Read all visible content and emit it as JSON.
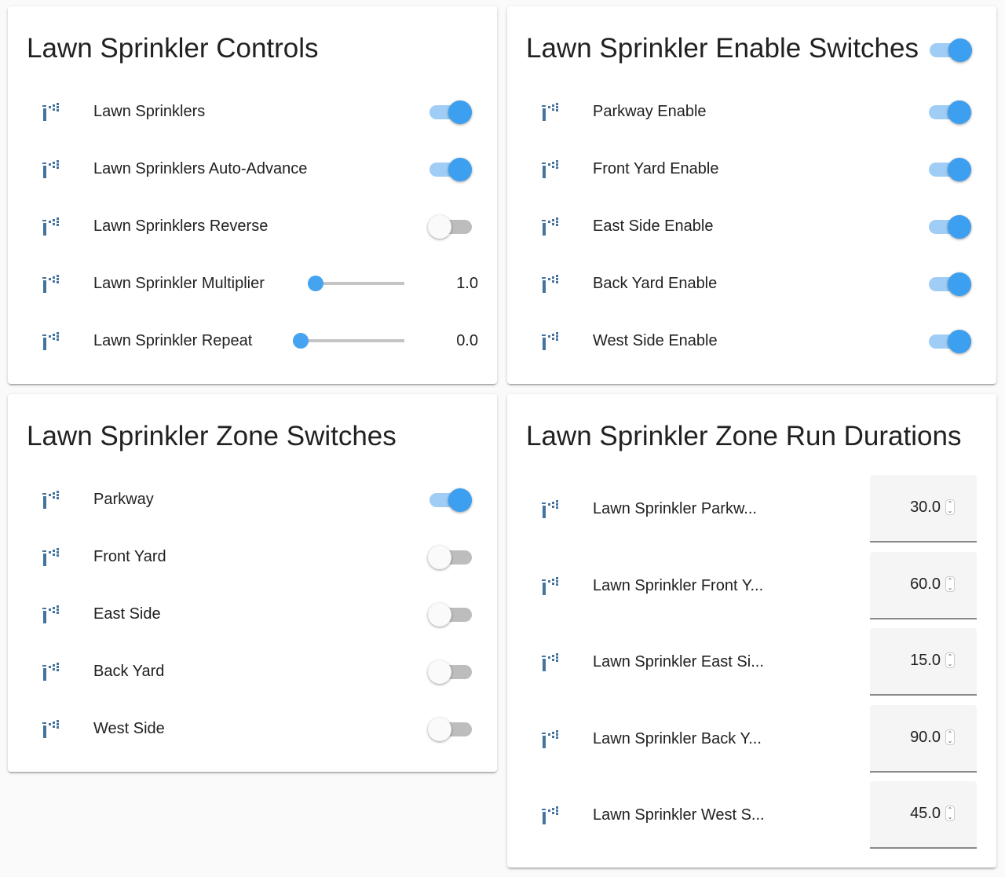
{
  "accent": "#3d9fef",
  "controls": {
    "title": "Lawn Sprinkler Controls",
    "items": [
      {
        "label": "Lawn Sprinklers",
        "type": "toggle",
        "on": true
      },
      {
        "label": "Lawn Sprinklers Auto-Advance",
        "type": "toggle",
        "on": true
      },
      {
        "label": "Lawn Sprinklers Reverse",
        "type": "toggle",
        "on": false
      },
      {
        "label": "Lawn Sprinkler Multiplier",
        "type": "slider",
        "value": "1.0"
      },
      {
        "label": "Lawn Sprinkler Repeat",
        "type": "slider",
        "value": "0.0"
      }
    ]
  },
  "enable": {
    "title": "Lawn Sprinkler Enable Switches",
    "header_toggle_on": true,
    "items": [
      {
        "label": "Parkway Enable",
        "on": true
      },
      {
        "label": "Front Yard Enable",
        "on": true
      },
      {
        "label": "East Side Enable",
        "on": true
      },
      {
        "label": "Back Yard Enable",
        "on": true
      },
      {
        "label": "West Side Enable",
        "on": true
      }
    ]
  },
  "zones": {
    "title": "Lawn Sprinkler Zone Switches",
    "items": [
      {
        "label": "Parkway",
        "on": true
      },
      {
        "label": "Front Yard",
        "on": false
      },
      {
        "label": "East Side",
        "on": false
      },
      {
        "label": "Back Yard",
        "on": false
      },
      {
        "label": "West Side",
        "on": false
      }
    ]
  },
  "durations": {
    "title": "Lawn Sprinkler Zone Run Durations",
    "items": [
      {
        "label": "Lawn Sprinkler Parkw...",
        "value": "30.0"
      },
      {
        "label": "Lawn Sprinkler Front Y...",
        "value": "60.0"
      },
      {
        "label": "Lawn Sprinkler East Si...",
        "value": "15.0"
      },
      {
        "label": "Lawn Sprinkler Back Y...",
        "value": "90.0"
      },
      {
        "label": "Lawn Sprinkler West S...",
        "value": "45.0"
      }
    ]
  },
  "icons": {
    "row": "sprinkler-icon",
    "spinner": "spinner-arrows-icon"
  }
}
